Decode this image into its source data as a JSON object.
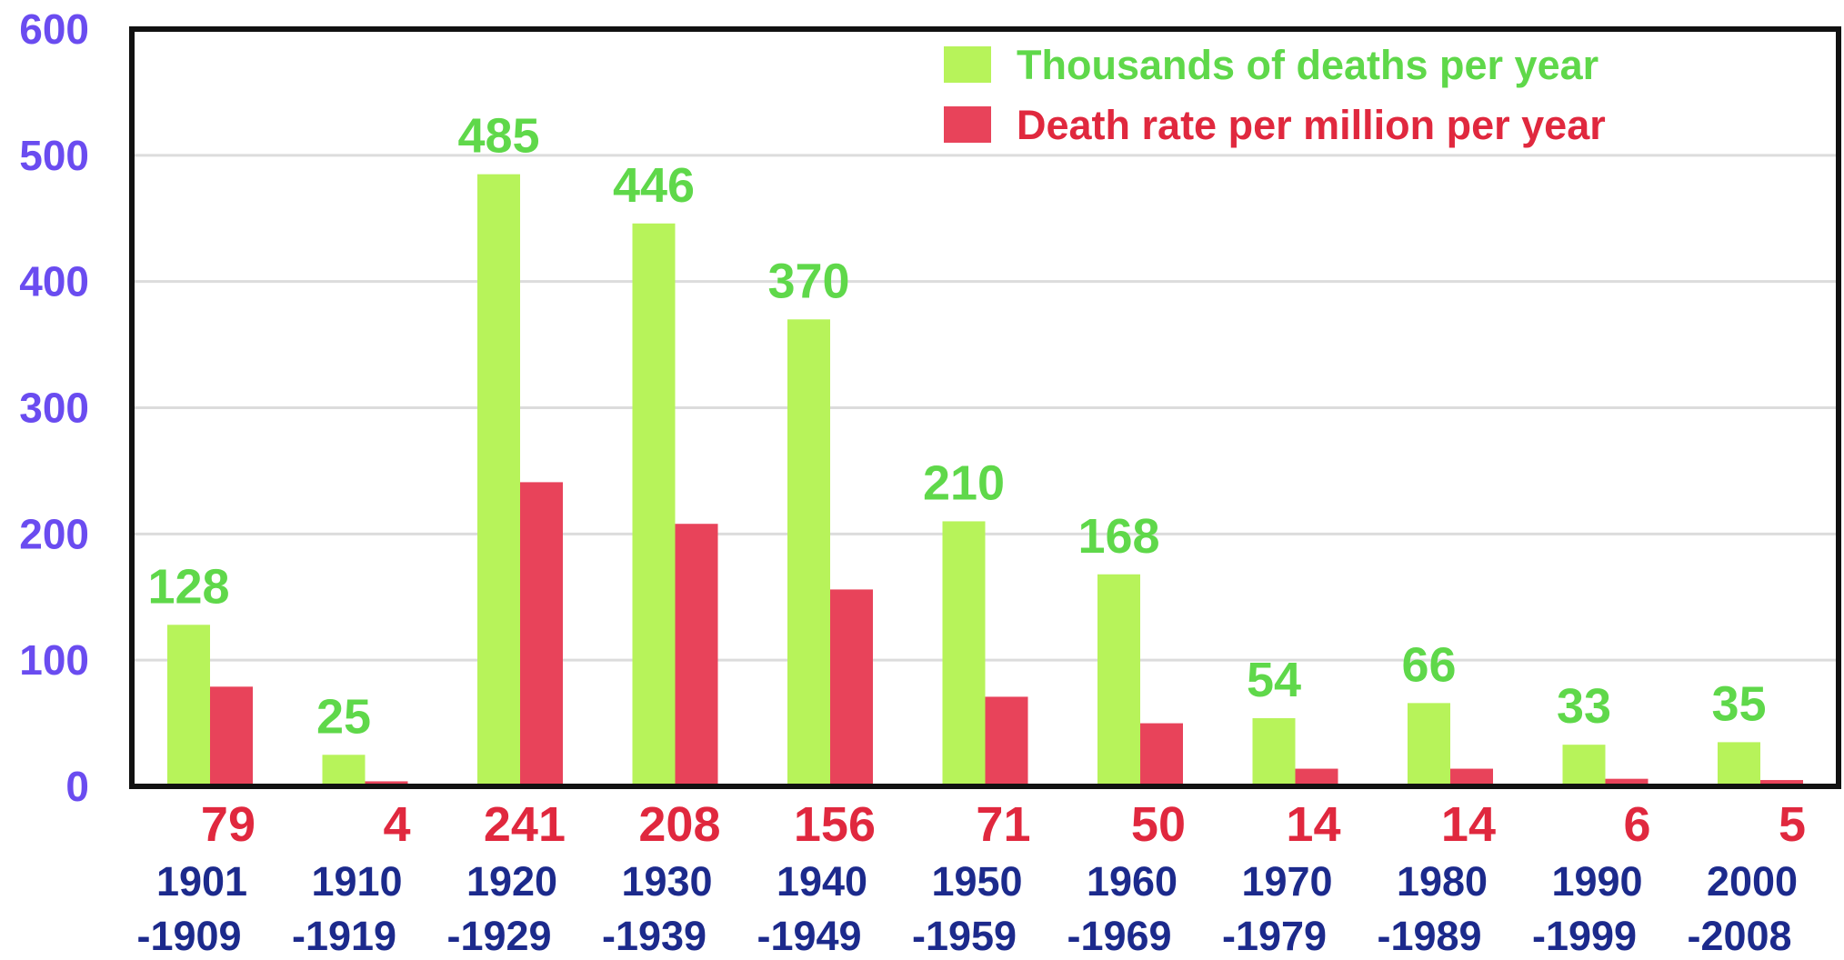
{
  "chart_data": {
    "type": "bar",
    "categories": [
      [
        "1901",
        "-1909"
      ],
      [
        "1910",
        "-1919"
      ],
      [
        "1920",
        "-1929"
      ],
      [
        "1930",
        "-1939"
      ],
      [
        "1940",
        "-1949"
      ],
      [
        "1950",
        "-1959"
      ],
      [
        "1960",
        "-1969"
      ],
      [
        "1970",
        "-1979"
      ],
      [
        "1980",
        "-1989"
      ],
      [
        "1990",
        "-1999"
      ],
      [
        "2000",
        "-2008"
      ]
    ],
    "series": [
      {
        "name": "Thousands of deaths per year",
        "color": "#b7f35a",
        "label_color": "#5fd84a",
        "values": [
          128,
          25,
          485,
          446,
          370,
          210,
          168,
          54,
          66,
          33,
          35
        ]
      },
      {
        "name": "Death rate per million per year",
        "color": "#e8435a",
        "label_color": "#e0283e",
        "values": [
          79,
          4,
          241,
          208,
          156,
          71,
          50,
          14,
          14,
          6,
          5
        ]
      }
    ],
    "yticks": [
      0,
      100,
      200,
      300,
      400,
      500,
      600
    ],
    "ylim": [
      0,
      600
    ],
    "grid": true,
    "legend": "top-right",
    "title": "",
    "xlabel": "",
    "ylabel": ""
  }
}
